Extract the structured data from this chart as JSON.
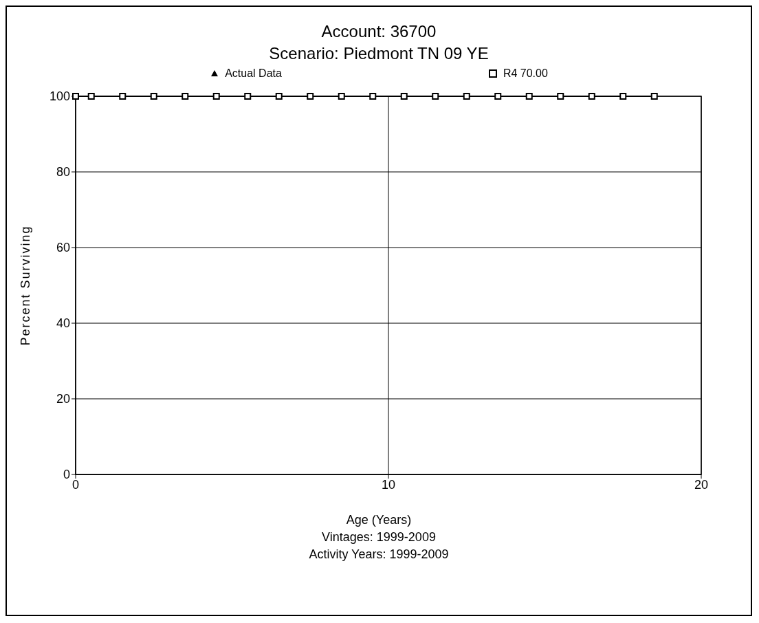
{
  "chart_data": {
    "type": "line",
    "title": "Account: 36700",
    "subtitle": "Scenario: Piedmont TN 09 YE",
    "xlabel": "Age (Years)",
    "ylabel": "Percent Surviving",
    "annotations": [
      "Vintages: 1999-2009",
      "Activity Years: 1999-2009"
    ],
    "x": [
      0,
      0.5,
      1.5,
      2.5,
      3.5,
      4.5,
      5.5,
      6.5,
      7.5,
      8.5,
      9.5,
      10.5,
      11.5,
      12.5,
      13.5,
      14.5,
      15.5,
      16.5,
      17.5,
      18.5
    ],
    "series": [
      {
        "name": "Actual Data",
        "marker": "triangle",
        "color": "#000000",
        "values": [
          null,
          null,
          null,
          null,
          null,
          null,
          null,
          null,
          null,
          null,
          null,
          null,
          null,
          null,
          null,
          null,
          null,
          null,
          null,
          null
        ]
      },
      {
        "name": "R4 70.00",
        "marker": "square",
        "color": "#000000",
        "values": [
          100,
          100,
          100,
          100,
          100,
          100,
          100,
          100,
          100,
          100,
          100,
          100,
          100,
          100,
          100,
          100,
          100,
          100,
          100,
          100
        ]
      }
    ],
    "xlim": [
      0,
      20
    ],
    "xticks": [
      0,
      10,
      20
    ],
    "ylim": [
      0,
      100
    ],
    "yticks": [
      0,
      20,
      40,
      60,
      80,
      100
    ],
    "grid": true,
    "legend": "top",
    "line_style": "solid"
  }
}
